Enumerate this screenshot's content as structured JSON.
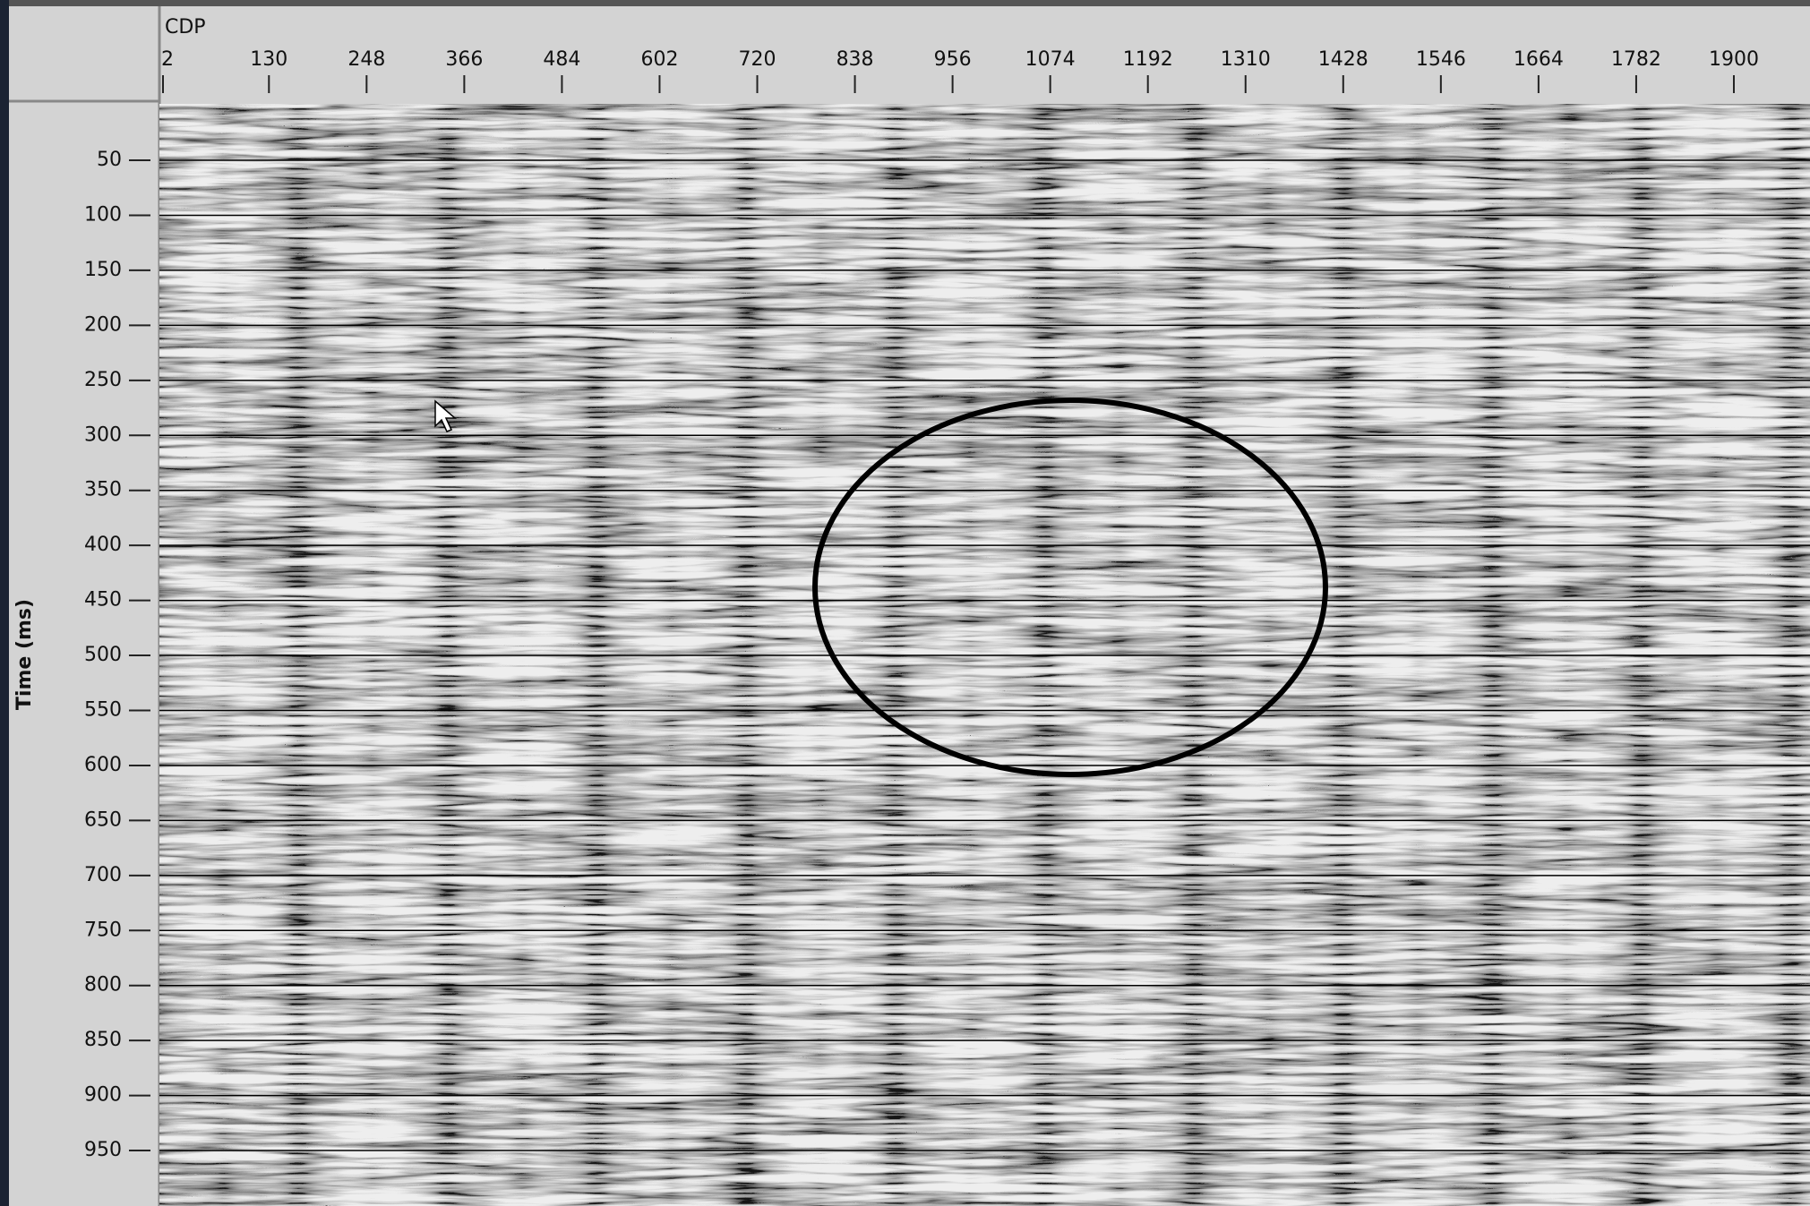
{
  "chart_data": {
    "type": "seismic",
    "xlabel": "CDP",
    "ylabel": "Time (ms)",
    "xlim": [
      2,
      1992
    ],
    "xticks": [
      2,
      130,
      248,
      366,
      484,
      602,
      720,
      838,
      956,
      1074,
      1192,
      1310,
      1428,
      1546,
      1664,
      1782,
      1900
    ],
    "ylim": [
      0,
      1000
    ],
    "yticks": [
      50,
      100,
      150,
      200,
      250,
      300,
      350,
      400,
      450,
      500,
      550,
      600,
      650,
      700,
      750,
      800,
      850,
      900,
      950
    ],
    "grid": true
  }
}
